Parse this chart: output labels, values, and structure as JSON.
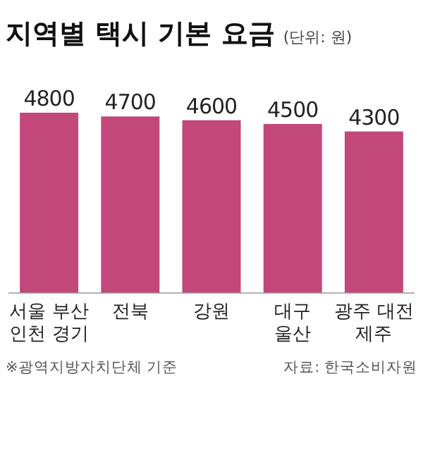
{
  "chart_data": {
    "type": "bar",
    "title": "지역별 택시 기본 요금",
    "subtitle": "(단위: 원)",
    "categories": [
      "서울 부산\n인천 경기",
      "전북",
      "강원",
      "대구\n울산",
      "광주 대전\n제주"
    ],
    "values": [
      4800,
      4700,
      4600,
      4500,
      4300
    ],
    "color": "#c2487a",
    "data_labels": true,
    "tick_labels": "x",
    "annotations": [
      "※광역지방자치단체 기준",
      "자료: 한국소비자원"
    ]
  }
}
